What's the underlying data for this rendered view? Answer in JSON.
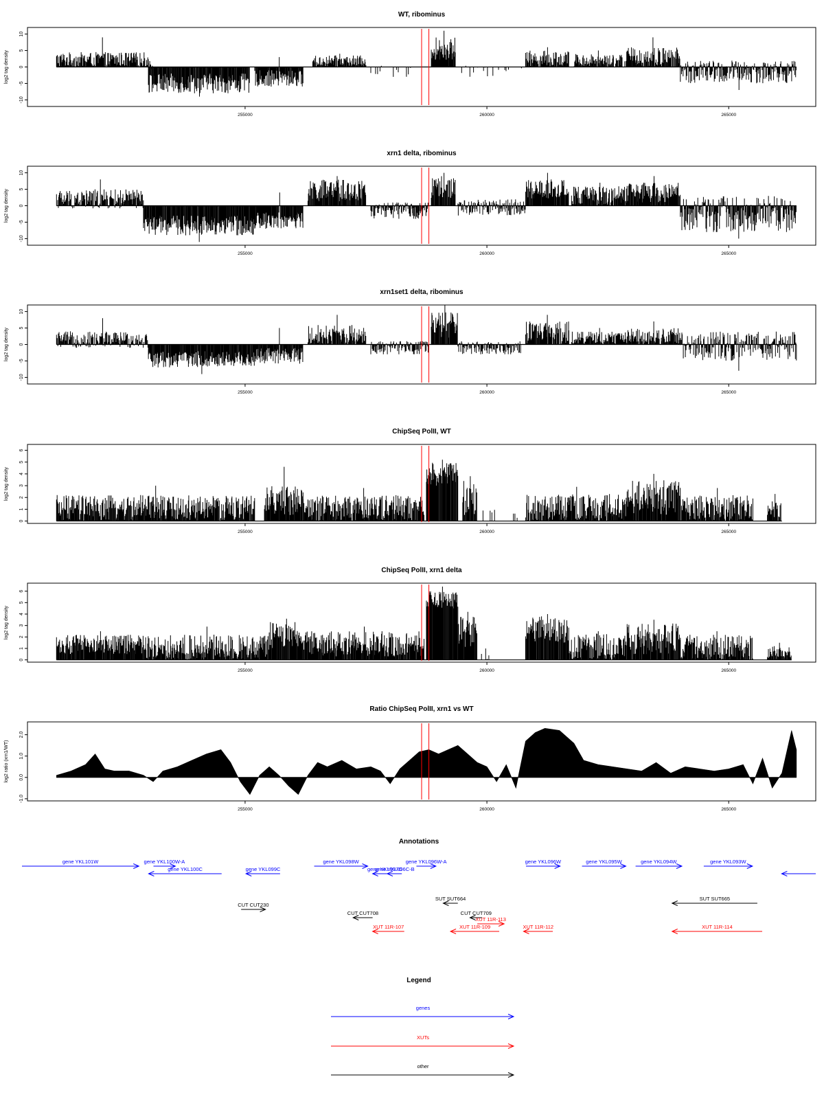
{
  "colors": {
    "gene": "#0000ff",
    "xut": "#ff0000",
    "other": "#000000",
    "marker": "#ff0000",
    "bars": "#000000"
  },
  "chart_data": [
    {
      "id": "wt",
      "type": "bar",
      "title": "WT, ribominus",
      "ylabel": "log2 tag density",
      "xlim": [
        250500,
        266800
      ],
      "ylim": [
        -12,
        12
      ],
      "yticks": [
        10,
        5,
        0,
        -5,
        -10
      ],
      "ytick_labels": [
        "10",
        "5",
        "0",
        "-5",
        "-10"
      ],
      "xticks": [
        255000,
        260000,
        265000
      ],
      "xtick_labels": [
        "255000",
        "260000",
        "265000"
      ],
      "markers": [
        258650,
        258800
      ],
      "segments": [
        {
          "x": [
            251100,
            253000
          ],
          "y": [
            0,
            4.5
          ],
          "peak": 9
        },
        {
          "x": [
            253000,
            253100
          ],
          "y": [
            -1,
            2
          ]
        },
        {
          "x": [
            253000,
            255100
          ],
          "y": [
            -8,
            -2
          ],
          "peak": -9
        },
        {
          "x": [
            255200,
            256200
          ],
          "y": [
            -6,
            -1
          ],
          "peak": 3
        },
        {
          "x": [
            256400,
            257500
          ],
          "y": [
            0,
            3.5
          ],
          "peak": 4
        },
        {
          "x": [
            257600,
            258700
          ],
          "y": [
            -3,
            1
          ],
          "sparse": true
        },
        {
          "x": [
            258850,
            259350
          ],
          "y": [
            2,
            9
          ],
          "peak": 11
        },
        {
          "x": [
            259400,
            260800
          ],
          "y": [
            -3,
            0.5
          ],
          "sparse": true
        },
        {
          "x": [
            260800,
            261700
          ],
          "y": [
            0,
            5
          ],
          "peak": 6
        },
        {
          "x": [
            261800,
            262800
          ],
          "y": [
            0,
            4
          ],
          "peak": 5
        },
        {
          "x": [
            262850,
            264000
          ],
          "y": [
            0,
            6
          ],
          "peak": 9
        },
        {
          "x": [
            264000,
            266400
          ],
          "y": [
            -5,
            2
          ],
          "peak": -7
        }
      ]
    },
    {
      "id": "xrn1",
      "type": "bar",
      "title": "xrn1 delta, ribominus",
      "ylabel": "log2 tag density",
      "xlim": [
        250500,
        266800
      ],
      "ylim": [
        -12,
        12
      ],
      "yticks": [
        10,
        5,
        0,
        -5,
        -10
      ],
      "ytick_labels": [
        "10",
        "5",
        "0",
        "-5",
        "-10"
      ],
      "xticks": [
        255000,
        260000,
        265000
      ],
      "xtick_labels": [
        "255000",
        "260000",
        "265000"
      ],
      "markers": [
        258650,
        258800
      ],
      "segments": [
        {
          "x": [
            251100,
            252900
          ],
          "y": [
            -1,
            5
          ],
          "peak": 8
        },
        {
          "x": [
            252900,
            255200
          ],
          "y": [
            -9,
            -3
          ],
          "peak": -11
        },
        {
          "x": [
            255200,
            256200
          ],
          "y": [
            -7,
            -2
          ],
          "peak": 4
        },
        {
          "x": [
            256300,
            257500
          ],
          "y": [
            1,
            8
          ],
          "peak": 9
        },
        {
          "x": [
            257600,
            258800
          ],
          "y": [
            -4,
            1
          ]
        },
        {
          "x": [
            258850,
            259350
          ],
          "y": [
            2,
            9
          ],
          "peak": 10
        },
        {
          "x": [
            259400,
            260800
          ],
          "y": [
            -3,
            2
          ]
        },
        {
          "x": [
            260800,
            261700
          ],
          "y": [
            2,
            8
          ],
          "peak": 10
        },
        {
          "x": [
            261750,
            262900
          ],
          "y": [
            0,
            6
          ],
          "peak": 7
        },
        {
          "x": [
            262900,
            264000
          ],
          "y": [
            1,
            7
          ],
          "peak": 9
        },
        {
          "x": [
            264000,
            266400
          ],
          "y": [
            -8,
            3
          ],
          "peak": -10
        }
      ]
    },
    {
      "id": "xrn1set1",
      "type": "bar",
      "title": "xrn1set1 delta, ribominus",
      "ylabel": "log2 tag density",
      "xlim": [
        250500,
        266800
      ],
      "ylim": [
        -12,
        12
      ],
      "yticks": [
        10,
        5,
        0,
        -5,
        -10
      ],
      "ytick_labels": [
        "10",
        "5",
        "0",
        "-5",
        "-10"
      ],
      "xticks": [
        255000,
        260000,
        265000
      ],
      "xtick_labels": [
        "255000",
        "260000",
        "265000"
      ],
      "markers": [
        258650,
        258800
      ],
      "segments": [
        {
          "x": [
            251100,
            253000
          ],
          "y": [
            -1,
            4
          ],
          "peak": 8
        },
        {
          "x": [
            253000,
            255200
          ],
          "y": [
            -7,
            -2
          ],
          "peak": -9
        },
        {
          "x": [
            255200,
            256200
          ],
          "y": [
            -6,
            -1
          ],
          "peak": 5
        },
        {
          "x": [
            256300,
            257500
          ],
          "y": [
            0,
            6
          ],
          "peak": 9
        },
        {
          "x": [
            257600,
            258800
          ],
          "y": [
            -3,
            1
          ]
        },
        {
          "x": [
            258850,
            259400
          ],
          "y": [
            2,
            10
          ],
          "peak": 12
        },
        {
          "x": [
            259400,
            260700
          ],
          "y": [
            -3,
            1
          ]
        },
        {
          "x": [
            260800,
            261700
          ],
          "y": [
            0,
            7
          ],
          "peak": 9
        },
        {
          "x": [
            261750,
            262900
          ],
          "y": [
            0,
            4
          ],
          "peak": 5
        },
        {
          "x": [
            262900,
            264000
          ],
          "y": [
            0,
            5
          ],
          "peak": 7
        },
        {
          "x": [
            264000,
            266400
          ],
          "y": [
            -5,
            4
          ],
          "peak": -8
        }
      ]
    },
    {
      "id": "chip_wt",
      "type": "bar",
      "title": "ChipSeq PolII, WT",
      "ylabel": "log2 tag density",
      "xlim": [
        250500,
        266800
      ],
      "ylim": [
        -0.2,
        6.5
      ],
      "yticks": [
        0,
        1,
        2,
        3,
        4,
        5,
        6
      ],
      "ytick_labels": [
        "0",
        "1",
        "2",
        "3",
        "4",
        "5",
        "6"
      ],
      "xticks": [
        255000,
        260000,
        265000
      ],
      "xtick_labels": [
        "255000",
        "260000",
        "265000"
      ],
      "markers": [
        258650,
        258800
      ],
      "segments": [
        {
          "x": [
            251100,
            255200
          ],
          "y": [
            0,
            2.2
          ],
          "peak": 3
        },
        {
          "x": [
            255400,
            256200
          ],
          "y": [
            0.5,
            3
          ],
          "peak": 4.6
        },
        {
          "x": [
            256200,
            258700
          ],
          "y": [
            0,
            2.2
          ],
          "peak": 2.8
        },
        {
          "x": [
            258750,
            259400
          ],
          "y": [
            3,
            5
          ],
          "peak": 5.2
        },
        {
          "x": [
            259500,
            259800
          ],
          "y": [
            0.5,
            3.5
          ],
          "peak": 3.8
        },
        {
          "x": [
            259800,
            260200
          ],
          "y": [
            0,
            1
          ],
          "sparse": true
        },
        {
          "x": [
            260500,
            260650
          ],
          "y": [
            0,
            1
          ],
          "sparse": true
        },
        {
          "x": [
            260800,
            262900
          ],
          "y": [
            0,
            2.3
          ],
          "peak": 2.9
        },
        {
          "x": [
            262900,
            264000
          ],
          "y": [
            0.5,
            3.5
          ],
          "peak": 4
        },
        {
          "x": [
            264000,
            265500
          ],
          "y": [
            0,
            2.2
          ],
          "peak": 2.8
        },
        {
          "x": [
            265800,
            266100
          ],
          "y": [
            0,
            1.8
          ],
          "peak": 2.3
        }
      ]
    },
    {
      "id": "chip_xrn1",
      "type": "bar",
      "title": "ChipSeq PolII, xrn1 delta",
      "ylabel": "log2 tag density",
      "xlim": [
        250500,
        266800
      ],
      "ylim": [
        -0.2,
        6.7
      ],
      "yticks": [
        0,
        1,
        2,
        3,
        4,
        5,
        6
      ],
      "ytick_labels": [
        "0",
        "1",
        "2",
        "3",
        "4",
        "5",
        "6"
      ],
      "xticks": [
        255000,
        260000,
        265000
      ],
      "xtick_labels": [
        "255000",
        "260000",
        "265000"
      ],
      "markers": [
        258650,
        258800
      ],
      "segments": [
        {
          "x": [
            251100,
            252900
          ],
          "y": [
            0.5,
            2.2
          ],
          "peak": 2.5
        },
        {
          "x": [
            252900,
            255500
          ],
          "y": [
            0,
            2.2
          ],
          "peak": 2.9
        },
        {
          "x": [
            255500,
            256200
          ],
          "y": [
            1,
            3.3
          ],
          "peak": 3.6
        },
        {
          "x": [
            256200,
            258700
          ],
          "y": [
            0.3,
            2.5
          ],
          "peak": 2.9
        },
        {
          "x": [
            258750,
            259400
          ],
          "y": [
            4.5,
            6
          ],
          "peak": 6.4
        },
        {
          "x": [
            259400,
            259800
          ],
          "y": [
            1,
            3.8
          ],
          "peak": 4.2
        },
        {
          "x": [
            259800,
            260100
          ],
          "y": [
            0,
            1
          ],
          "sparse": true
        },
        {
          "x": [
            260800,
            261700
          ],
          "y": [
            1.5,
            3.8
          ],
          "peak": 4
        },
        {
          "x": [
            261700,
            262900
          ],
          "y": [
            0,
            2.3
          ],
          "peak": 2.5
        },
        {
          "x": [
            262900,
            264000
          ],
          "y": [
            0.5,
            3.2
          ],
          "peak": 3.5
        },
        {
          "x": [
            264000,
            265500
          ],
          "y": [
            0,
            2.2
          ],
          "peak": 2.5
        },
        {
          "x": [
            265800,
            266300
          ],
          "y": [
            0,
            1.2
          ],
          "peak": 1.5
        }
      ]
    },
    {
      "id": "ratio",
      "type": "area",
      "title": "Ratio ChipSeq PolII, xrn1 vs WT",
      "ylabel": "log2 ratio (xrn1/WT)",
      "xlim": [
        250500,
        266800
      ],
      "ylim": [
        -1.1,
        2.6
      ],
      "yticks": [
        -1,
        0,
        1,
        2
      ],
      "ytick_labels": [
        "-1.0",
        "0.0",
        "1.0",
        "2.0"
      ],
      "xticks": [
        255000,
        260000,
        265000
      ],
      "xtick_labels": [
        "255000",
        "260000",
        "265000"
      ],
      "markers": [
        258650,
        258800
      ],
      "x": [
        251100,
        251400,
        251700,
        251900,
        252100,
        252300,
        252600,
        252900,
        253100,
        253300,
        253600,
        253900,
        254200,
        254500,
        254700,
        254900,
        255100,
        255300,
        255500,
        255700,
        255900,
        256100,
        256300,
        256500,
        256700,
        257000,
        257300,
        257600,
        257800,
        258000,
        258200,
        258400,
        258600,
        258800,
        259000,
        259200,
        259400,
        259600,
        259800,
        260000,
        260200,
        260400,
        260600,
        260800,
        261000,
        261200,
        261500,
        261800,
        262000,
        262300,
        262600,
        262900,
        263200,
        263500,
        263800,
        264100,
        264400,
        264700,
        265000,
        265300,
        265500,
        265700,
        265900,
        266100,
        266300,
        266400
      ],
      "y": [
        0.1,
        0.3,
        0.6,
        1.1,
        0.4,
        0.3,
        0.3,
        0.1,
        -0.2,
        0.3,
        0.5,
        0.8,
        1.1,
        1.3,
        0.7,
        -0.2,
        -0.8,
        0.1,
        0.5,
        0.1,
        -0.4,
        -0.8,
        0.1,
        0.7,
        0.5,
        0.8,
        0.4,
        0.5,
        0.3,
        -0.3,
        0.4,
        0.8,
        1.2,
        1.3,
        1.1,
        1.3,
        1.5,
        1.1,
        0.7,
        0.5,
        -0.2,
        0.6,
        -0.5,
        1.7,
        2.1,
        2.3,
        2.2,
        1.6,
        0.8,
        0.6,
        0.5,
        0.4,
        0.3,
        0.7,
        0.2,
        0.5,
        0.4,
        0.3,
        0.4,
        0.6,
        -0.3,
        0.9,
        -0.5,
        0.2,
        2.2,
        1.3
      ]
    }
  ],
  "annotations": {
    "title": "Annotations",
    "xlim": [
      250500,
      266800
    ],
    "features": [
      {
        "label": "gene YKL101W",
        "kind": "gene",
        "dir": "right",
        "x1": 250500,
        "x2": 252900,
        "row": 0
      },
      {
        "label": "gene YKL100W-A",
        "kind": "gene",
        "dir": "right",
        "x1": 253200,
        "x2": 253650,
        "row": 0
      },
      {
        "label": "gene YKL100C",
        "kind": "gene",
        "dir": "left",
        "x1": 253100,
        "x2": 254600,
        "row": 1
      },
      {
        "label": "gene YKL099C",
        "kind": "gene",
        "dir": "left",
        "x1": 255100,
        "x2": 255800,
        "row": 1
      },
      {
        "label": "gene YKL098W",
        "kind": "gene",
        "dir": "right",
        "x1": 256500,
        "x2": 257600,
        "row": 0
      },
      {
        "label": "gene YKL097C",
        "kind": "gene",
        "dir": "left",
        "x1": 257700,
        "x2": 258200,
        "row": 1
      },
      {
        "label": "gene YKL096C-B",
        "kind": "gene",
        "dir": "left",
        "x1": 258000,
        "x2": 258300,
        "row": 1
      },
      {
        "label": "gene YKL096W-A",
        "kind": "gene",
        "dir": "right",
        "x1": 258600,
        "x2": 259000,
        "row": 0
      },
      {
        "label": "gene YKL096W",
        "kind": "gene",
        "dir": "right",
        "x1": 260850,
        "x2": 261550,
        "row": 0
      },
      {
        "label": "gene YKL095W",
        "kind": "gene",
        "dir": "right",
        "x1": 262000,
        "x2": 262900,
        "row": 0
      },
      {
        "label": "gene YKL094W",
        "kind": "gene",
        "dir": "right",
        "x1": 263100,
        "x2": 264050,
        "row": 0
      },
      {
        "label": "gene YKL093W",
        "kind": "gene",
        "dir": "right",
        "x1": 264500,
        "x2": 265500,
        "row": 0
      },
      {
        "label": "",
        "kind": "gene",
        "dir": "left",
        "x1": 266100,
        "x2": 266800,
        "row": 1
      },
      {
        "label": "CUT CUT230",
        "kind": "other",
        "dir": "right",
        "x1": 255000,
        "x2": 255500,
        "row": 2
      },
      {
        "label": "SUT SUT664",
        "kind": "other",
        "dir": "left",
        "x1": 259150,
        "x2": 259450,
        "row": 3
      },
      {
        "label": "SUT SUT665",
        "kind": "other",
        "dir": "left",
        "x1": 263850,
        "x2": 265600,
        "row": 3
      },
      {
        "label": "CUT CUT708",
        "kind": "other",
        "dir": "left",
        "x1": 257300,
        "x2": 257700,
        "row": 4
      },
      {
        "label": "CUT CUT709",
        "kind": "other",
        "dir": "left",
        "x1": 259700,
        "x2": 259950,
        "row": 4
      },
      {
        "label": "XUT 11R-113",
        "kind": "xut",
        "dir": "right",
        "x1": 259850,
        "x2": 260400,
        "row": 5
      },
      {
        "label": "XUT 11R-107",
        "kind": "xut",
        "dir": "left",
        "x1": 257700,
        "x2": 258350,
        "row": 6
      },
      {
        "label": "XUT 11R-109",
        "kind": "xut",
        "dir": "left",
        "x1": 259300,
        "x2": 260300,
        "row": 6
      },
      {
        "label": "XUT 11R-112",
        "kind": "xut",
        "dir": "left",
        "x1": 260800,
        "x2": 261400,
        "row": 6
      },
      {
        "label": "XUT 11R-114",
        "kind": "xut",
        "dir": "left",
        "x1": 263850,
        "x2": 265700,
        "row": 6
      }
    ]
  },
  "legend": {
    "title": "Legend",
    "items": [
      {
        "label": "genes",
        "kind": "gene"
      },
      {
        "label": "XUTs",
        "kind": "xut"
      },
      {
        "label": "other",
        "kind": "other"
      }
    ]
  }
}
